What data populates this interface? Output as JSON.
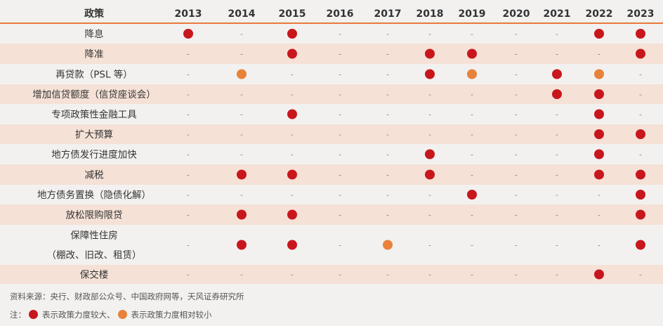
{
  "chart_data": {
    "type": "table",
    "header": {
      "policy_label": "政策",
      "years": [
        "2013",
        "2014",
        "2015",
        "2016",
        "2017",
        "2018",
        "2019",
        "2020",
        "2021",
        "2022",
        "2023"
      ]
    },
    "empty_symbol": "-",
    "legend": {
      "strong": {
        "color": "#c8161d",
        "label": "表示政策力度较大、"
      },
      "weak": {
        "color": "#e8823a",
        "label": "表示政策力度相对较小"
      }
    },
    "rows": [
      {
        "policy": [
          "降息"
        ],
        "marks": [
          "strong",
          "",
          "strong",
          "",
          "",
          "",
          "",
          "",
          "",
          "strong",
          "strong"
        ]
      },
      {
        "policy": [
          "降准"
        ],
        "marks": [
          "",
          "",
          "strong",
          "",
          "",
          "strong",
          "strong",
          "",
          "",
          "",
          "strong"
        ]
      },
      {
        "policy": [
          "再贷款（PSL 等）"
        ],
        "marks": [
          "",
          "weak",
          "",
          "",
          "",
          "strong",
          "weak",
          "",
          "strong",
          "weak",
          ""
        ]
      },
      {
        "policy": [
          "增加信贷额度（信贷座谈会）"
        ],
        "marks": [
          "",
          "",
          "",
          "",
          "",
          "",
          "",
          "",
          "strong",
          "strong",
          ""
        ]
      },
      {
        "policy": [
          "专项政策性金融工具"
        ],
        "marks": [
          "",
          "",
          "strong",
          "",
          "",
          "",
          "",
          "",
          "",
          "strong",
          ""
        ]
      },
      {
        "policy": [
          "扩大预算"
        ],
        "marks": [
          "",
          "",
          "",
          "",
          "",
          "",
          "",
          "",
          "",
          "strong",
          "strong"
        ]
      },
      {
        "policy": [
          "地方债发行进度加快"
        ],
        "marks": [
          "",
          "",
          "",
          "",
          "",
          "strong",
          "",
          "",
          "",
          "strong",
          ""
        ]
      },
      {
        "policy": [
          "减税"
        ],
        "marks": [
          "",
          "strong",
          "strong",
          "",
          "",
          "strong",
          "",
          "",
          "",
          "strong",
          "strong"
        ]
      },
      {
        "policy": [
          "地方债务置换（隐债化解）"
        ],
        "marks": [
          "",
          "",
          "",
          "",
          "",
          "",
          "strong",
          "",
          "",
          "",
          "strong"
        ]
      },
      {
        "policy": [
          "放松限购限贷"
        ],
        "marks": [
          "",
          "strong",
          "strong",
          "",
          "",
          "",
          "",
          "",
          "",
          "",
          "strong"
        ]
      },
      {
        "policy": [
          "保障性住房",
          "（棚改、旧改、租赁）"
        ],
        "marks": [
          "",
          "strong",
          "strong",
          "",
          "weak",
          "",
          "",
          "",
          "",
          "",
          "strong"
        ]
      },
      {
        "policy": [
          "保交楼"
        ],
        "marks": [
          "",
          "",
          "",
          "",
          "",
          "",
          "",
          "",
          "",
          "strong",
          ""
        ]
      }
    ]
  },
  "footer": {
    "source": "资料来源：央行、财政部公众号、中国政府网等，天风证券研究所",
    "note_prefix": "注："
  }
}
